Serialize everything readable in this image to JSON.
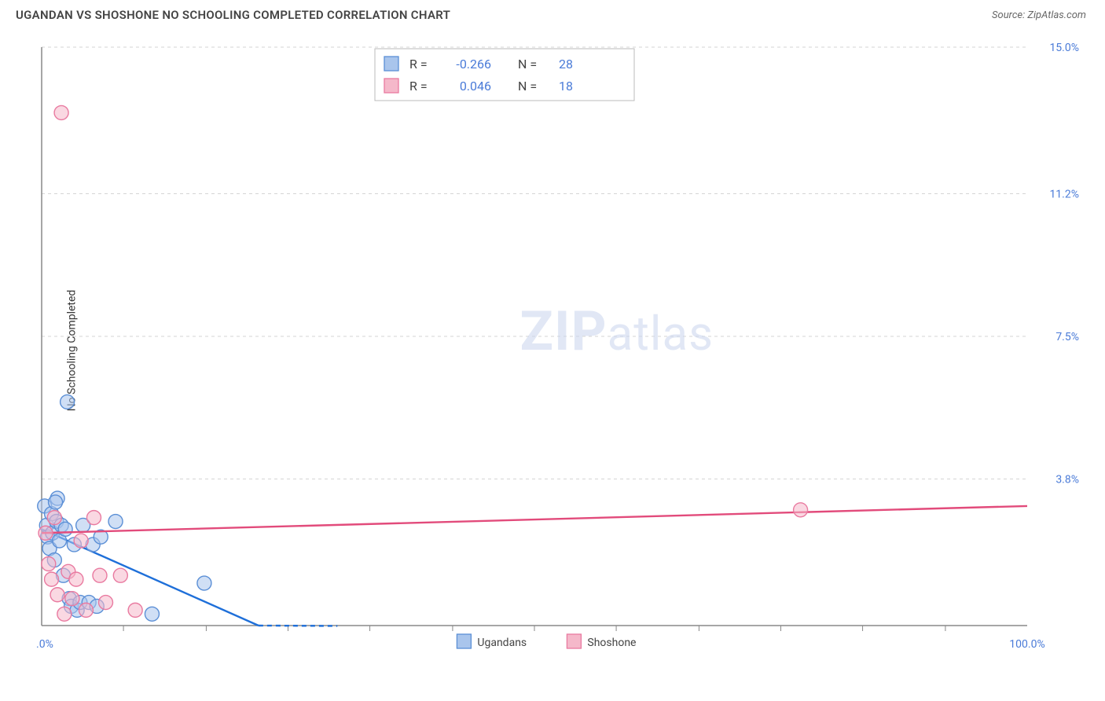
{
  "header": {
    "title": "UGANDAN VS SHOSHONE NO SCHOOLING COMPLETED CORRELATION CHART",
    "source": "Source: ZipAtlas.com"
  },
  "chart": {
    "type": "scatter",
    "ylabel": "No Schooling Completed",
    "watermark_a": "ZIP",
    "watermark_b": "atlas",
    "background_color": "#ffffff",
    "grid_color": "#d5d5d5",
    "axis_color": "#888888",
    "label_color": "#4a7bd8",
    "xlim": [
      0,
      100
    ],
    "ylim": [
      0,
      15
    ],
    "xticks_minor": [
      8.3,
      16.7,
      25,
      33.3,
      41.7,
      50,
      58.3,
      66.7,
      75,
      83.3,
      91.7
    ],
    "xticks_labels": [
      {
        "pos": 0,
        "label": "0.0%"
      },
      {
        "pos": 100,
        "label": "100.0%"
      }
    ],
    "yticks": [
      {
        "pos": 3.8,
        "label": "3.8%"
      },
      {
        "pos": 7.5,
        "label": "7.5%"
      },
      {
        "pos": 11.2,
        "label": "11.2%"
      },
      {
        "pos": 15.0,
        "label": "15.0%"
      }
    ],
    "series": [
      {
        "name": "Ugandans",
        "color_fill": "#a9c5ec",
        "color_stroke": "#5b8fd6",
        "fill_opacity": 0.55,
        "marker_r": 9,
        "trend_color": "#1e6fd9",
        "trend_width": 2.4,
        "trend": {
          "x1": 0,
          "y1": 2.5,
          "x2": 22,
          "y2": 0.0
        },
        "trend_dash": {
          "x1": 22,
          "y1": 0.0,
          "x2": 30,
          "y2": -0.8
        },
        "points": [
          {
            "x": 0.3,
            "y": 3.1
          },
          {
            "x": 0.5,
            "y": 2.6
          },
          {
            "x": 0.6,
            "y": 2.3
          },
          {
            "x": 0.8,
            "y": 2.0
          },
          {
            "x": 1.0,
            "y": 2.9
          },
          {
            "x": 1.1,
            "y": 2.4
          },
          {
            "x": 1.3,
            "y": 1.7
          },
          {
            "x": 1.5,
            "y": 2.7
          },
          {
            "x": 1.6,
            "y": 3.3
          },
          {
            "x": 1.8,
            "y": 2.2
          },
          {
            "x": 2.0,
            "y": 2.6
          },
          {
            "x": 2.2,
            "y": 1.3
          },
          {
            "x": 2.4,
            "y": 2.5
          },
          {
            "x": 2.6,
            "y": 5.8
          },
          {
            "x": 2.8,
            "y": 0.7
          },
          {
            "x": 3.0,
            "y": 0.5
          },
          {
            "x": 3.3,
            "y": 2.1
          },
          {
            "x": 3.6,
            "y": 0.4
          },
          {
            "x": 3.9,
            "y": 0.6
          },
          {
            "x": 4.2,
            "y": 2.6
          },
          {
            "x": 4.8,
            "y": 0.6
          },
          {
            "x": 5.2,
            "y": 2.1
          },
          {
            "x": 5.6,
            "y": 0.5
          },
          {
            "x": 6.0,
            "y": 2.3
          },
          {
            "x": 7.5,
            "y": 2.7
          },
          {
            "x": 11.2,
            "y": 0.3
          },
          {
            "x": 16.5,
            "y": 1.1
          },
          {
            "x": 1.4,
            "y": 3.2
          }
        ]
      },
      {
        "name": "Shoshone",
        "color_fill": "#f5b8ca",
        "color_stroke": "#e97aa0",
        "fill_opacity": 0.55,
        "marker_r": 9,
        "trend_color": "#e24b7b",
        "trend_width": 2.4,
        "trend": {
          "x1": 0,
          "y1": 2.4,
          "x2": 100,
          "y2": 3.1
        },
        "points": [
          {
            "x": 0.4,
            "y": 2.4
          },
          {
            "x": 0.7,
            "y": 1.6
          },
          {
            "x": 1.0,
            "y": 1.2
          },
          {
            "x": 1.3,
            "y": 2.8
          },
          {
            "x": 1.6,
            "y": 0.8
          },
          {
            "x": 2.0,
            "y": 13.3
          },
          {
            "x": 2.3,
            "y": 0.3
          },
          {
            "x": 2.7,
            "y": 1.4
          },
          {
            "x": 3.1,
            "y": 0.7
          },
          {
            "x": 3.5,
            "y": 1.2
          },
          {
            "x": 4.0,
            "y": 2.2
          },
          {
            "x": 4.5,
            "y": 0.4
          },
          {
            "x": 5.3,
            "y": 2.8
          },
          {
            "x": 5.9,
            "y": 1.3
          },
          {
            "x": 6.5,
            "y": 0.6
          },
          {
            "x": 8.0,
            "y": 1.3
          },
          {
            "x": 9.5,
            "y": 0.4
          },
          {
            "x": 77.0,
            "y": 3.0
          }
        ]
      }
    ],
    "legend_top": {
      "box": {
        "stroke": "#bbbbbb",
        "fill": "#ffffff"
      },
      "rows": [
        {
          "swatch_fill": "#a9c5ec",
          "swatch_stroke": "#5b8fd6",
          "r_label": "R =",
          "r_val": "-0.266",
          "n_label": "N =",
          "n_val": "28"
        },
        {
          "swatch_fill": "#f5b8ca",
          "swatch_stroke": "#e97aa0",
          "r_label": "R =",
          "r_val": "0.046",
          "n_label": "N =",
          "n_val": "18"
        }
      ]
    },
    "legend_bottom": {
      "items": [
        {
          "swatch_fill": "#a9c5ec",
          "swatch_stroke": "#5b8fd6",
          "label": "Ugandans"
        },
        {
          "swatch_fill": "#f5b8ca",
          "swatch_stroke": "#e97aa0",
          "label": "Shoshone"
        }
      ]
    }
  }
}
